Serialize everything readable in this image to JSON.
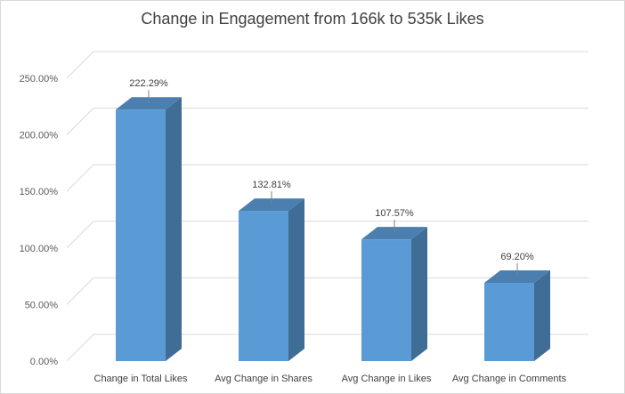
{
  "chart_data": {
    "type": "bar",
    "title": "Change in Engagement from 166k to 535k Likes",
    "categories": [
      "Change in Total Likes",
      "Avg Change in Shares",
      "Avg Change in Likes",
      "Avg Change in Comments"
    ],
    "values": [
      222.29,
      132.81,
      107.57,
      69.2
    ],
    "data_labels": [
      "222.29%",
      "132.81%",
      "107.57%",
      "69.20%"
    ],
    "y_ticks": [
      "0.00%",
      "50.00%",
      "100.00%",
      "150.00%",
      "200.00%",
      "250.00%"
    ],
    "ylim": [
      0,
      250
    ],
    "xlabel": "",
    "ylabel": "",
    "grid": true,
    "legend": "none",
    "style": "3d-column"
  },
  "colors": {
    "bar_front": "#5b9bd5",
    "bar_side": "#3f6d95",
    "bar_top": "#4a7fb0",
    "gridline": "#d9d9d9",
    "title": "#404040"
  }
}
